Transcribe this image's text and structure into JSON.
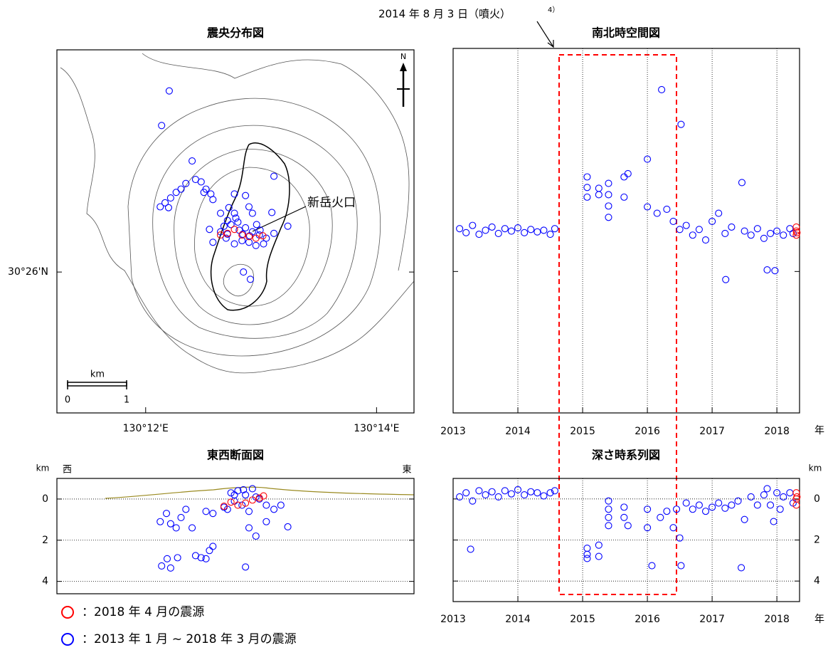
{
  "chart_data": [
    {
      "type": "scatter",
      "title": "震央分布図",
      "crater_label": "新岳火口",
      "north_label": "N",
      "scale_bar": {
        "label": "km",
        "ticks": [
          0,
          1
        ]
      },
      "xlim": [
        130.1872,
        130.2387
      ],
      "ylim": [
        30.4158,
        30.4609
      ],
      "xticks": [
        {
          "value": 130.2,
          "label": "130°12'E"
        },
        {
          "value": 130.2333,
          "label": "130°14'E"
        }
      ],
      "yticks": [
        {
          "value": 30.4333,
          "label": "30°26'N"
        }
      ],
      "grid": "none",
      "series": [
        {
          "name": "：2013 年 1 月 ~ 2018 年 3 月の震源",
          "color": "#0000ff",
          "x": [
            130.2034,
            130.2023,
            130.2067,
            130.2072,
            130.208,
            130.2058,
            130.2051,
            130.2044,
            130.2036,
            130.2028,
            130.2021,
            130.2033,
            130.2087,
            130.2094,
            130.2097,
            130.2084,
            130.2108,
            130.2092,
            130.2097,
            130.2128,
            130.2144,
            130.2149,
            130.2185,
            130.2182,
            130.2154,
            130.2128,
            130.2118,
            130.2113,
            130.2108,
            130.2123,
            130.2133,
            130.2144,
            130.2154,
            130.2164,
            130.2174,
            130.2185,
            130.2139,
            130.2149,
            130.2159,
            130.2128,
            130.2116,
            130.2205,
            130.2141,
            130.2151,
            130.212,
            130.2135,
            130.215,
            130.2165,
            130.2118,
            130.214,
            130.217,
            130.213,
            130.216
          ],
          "values": [
            30.4558,
            30.4515,
            30.4471,
            30.4448,
            30.4445,
            30.4443,
            30.4436,
            30.4432,
            30.4425,
            30.4419,
            30.4414,
            30.4413,
            30.4436,
            30.443,
            30.4423,
            30.4432,
            30.4406,
            30.4386,
            30.437,
            30.443,
            30.4428,
            30.4414,
            30.4452,
            30.4407,
            30.4406,
            30.4406,
            30.4397,
            30.439,
            30.4383,
            30.4392,
            30.4395,
            30.4388,
            30.4383,
            30.4379,
            30.4375,
            30.4381,
            30.4372,
            30.437,
            30.4366,
            30.4368,
            30.4375,
            30.439,
            30.4333,
            30.4324,
            30.4413,
            30.4385,
            30.4378,
            30.4385,
            30.438,
            30.438,
            30.4368,
            30.44,
            30.4392
          ]
        },
        {
          "name": "：2018 年 4 月の震源",
          "color": "#ff0000",
          "x": [
            130.2118,
            130.2128,
            130.2139,
            130.2149,
            130.2159,
            130.2108,
            130.2169
          ],
          "values": [
            30.4381,
            30.4386,
            30.4379,
            30.4377,
            30.4375,
            30.4379,
            30.4378
          ]
        }
      ]
    },
    {
      "type": "scatter",
      "title": "南北時空間図",
      "annotation": "2014 年 8 月 3 日（噴火）",
      "annotation_ref": "4）",
      "xlabel": "年",
      "xlim": [
        2013,
        2018.35
      ],
      "ylim": [
        30.4158,
        30.4609
      ],
      "xticks": [
        2013,
        2014,
        2015,
        2016,
        2017,
        2018
      ],
      "yticks": [
        30.4333
      ],
      "grid": "x",
      "series": [
        {
          "color": "#0000ff",
          "x": [
            2013.1,
            2013.2,
            2013.3,
            2013.4,
            2013.5,
            2013.6,
            2013.7,
            2013.8,
            2013.9,
            2014.0,
            2014.1,
            2014.2,
            2014.3,
            2014.4,
            2014.5,
            2014.57,
            2015.07,
            2015.07,
            2015.07,
            2015.25,
            2015.25,
            2015.4,
            2015.4,
            2015.4,
            2015.4,
            2015.64,
            2015.64,
            2015.7,
            2016.0,
            2016.22,
            2016.52,
            2016.0,
            2016.15,
            2016.3,
            2016.4,
            2016.5,
            2016.6,
            2016.7,
            2016.8,
            2016.9,
            2017.0,
            2017.1,
            2017.2,
            2017.21,
            2017.3,
            2017.46,
            2017.5,
            2017.6,
            2017.7,
            2017.8,
            2017.9,
            2017.85,
            2017.97,
            2018.0,
            2018.1,
            2018.2,
            2018.25
          ],
          "values": [
            30.4386,
            30.4381,
            30.439,
            30.4379,
            30.4384,
            30.4388,
            30.438,
            30.4386,
            30.4383,
            30.4387,
            30.4381,
            30.4385,
            30.4382,
            30.4384,
            30.4379,
            30.4386,
            30.445,
            30.4437,
            30.4425,
            30.4436,
            30.4428,
            30.4442,
            30.4428,
            30.4414,
            30.44,
            30.445,
            30.4425,
            30.4454,
            30.4472,
            30.4558,
            30.4515,
            30.4413,
            30.4405,
            30.441,
            30.4395,
            30.4385,
            30.439,
            30.4378,
            30.4385,
            30.4372,
            30.4395,
            30.4405,
            30.438,
            30.4323,
            30.4388,
            30.4443,
            30.4383,
            30.4378,
            30.4386,
            30.4374,
            30.438,
            30.4335,
            30.4334,
            30.4383,
            30.4378,
            30.4386,
            30.438
          ]
        },
        {
          "color": "#ff0000",
          "x": [
            2018.3,
            2018.3,
            2018.3,
            2018.31
          ],
          "values": [
            30.4383,
            30.4378,
            30.4388,
            30.4381
          ]
        }
      ]
    },
    {
      "type": "scatter",
      "title": "東西断面図",
      "ylabel": "km",
      "west_label": "西",
      "east_label": "東",
      "xlim": [
        130.1872,
        130.2387
      ],
      "ylim": [
        -1,
        4.6
      ],
      "y_inverted": true,
      "yticks": [
        0,
        2,
        4
      ],
      "grid": "y",
      "series": [
        {
          "color": "#0000ff",
          "x": [
            130.2021,
            130.203,
            130.2036,
            130.2044,
            130.2051,
            130.2058,
            130.2067,
            130.2087,
            130.2097,
            130.2023,
            130.2031,
            130.2046,
            130.2036,
            130.2072,
            130.208,
            130.2087,
            130.2092,
            130.2097,
            130.2144,
            130.2159,
            130.2149,
            130.2174,
            130.2205,
            130.2185,
            130.2195,
            130.2113,
            130.2123,
            130.2133,
            130.2144,
            130.2154,
            130.2164,
            130.2174,
            130.2128,
            130.2139,
            130.2149,
            130.2118,
            130.2159,
            130.2141,
            130.2128
          ],
          "values": [
            1.1,
            0.7,
            1.2,
            1.4,
            0.9,
            0.5,
            1.4,
            0.6,
            0.7,
            3.25,
            2.9,
            2.85,
            3.35,
            2.75,
            2.85,
            2.9,
            2.5,
            2.3,
            3.3,
            1.8,
            1.4,
            1.1,
            1.35,
            0.5,
            0.3,
            0.4,
            -0.3,
            -0.4,
            -0.2,
            -0.5,
            0.0,
            0.3,
            0.1,
            0.3,
            0.6,
            0.5,
            -0.1,
            -0.45,
            -0.2
          ]
        },
        {
          "color": "#ff0000",
          "x": [
            130.2113,
            130.2123,
            130.2133,
            130.2144,
            130.2154,
            130.2164,
            130.217
          ],
          "values": [
            0.35,
            0.15,
            0.3,
            0.2,
            0.05,
            -0.05,
            -0.15
          ]
        }
      ]
    },
    {
      "type": "scatter",
      "title": "深さ時系列図",
      "xlabel": "年",
      "ylabel": "km",
      "xlim": [
        2013,
        2018.35
      ],
      "ylim": [
        -1,
        5
      ],
      "y_inverted": true,
      "xticks": [
        2013,
        2014,
        2015,
        2016,
        2017,
        2018
      ],
      "yticks": [
        0,
        2,
        4
      ],
      "grid": "both",
      "series": [
        {
          "color": "#0000ff",
          "x": [
            2013.1,
            2013.2,
            2013.3,
            2013.4,
            2013.5,
            2013.6,
            2013.7,
            2013.8,
            2013.9,
            2014.0,
            2014.1,
            2014.2,
            2014.3,
            2014.4,
            2014.5,
            2014.57,
            2013.27,
            2015.07,
            2015.07,
            2015.07,
            2015.25,
            2015.25,
            2015.4,
            2015.4,
            2015.4,
            2015.4,
            2015.64,
            2015.64,
            2015.7,
            2016.0,
            2016.0,
            2016.07,
            2016.2,
            2016.3,
            2016.4,
            2016.45,
            2016.5,
            2016.52,
            2016.6,
            2016.7,
            2016.8,
            2016.9,
            2017.0,
            2017.1,
            2017.2,
            2017.3,
            2017.4,
            2017.45,
            2017.5,
            2017.6,
            2017.7,
            2017.8,
            2017.85,
            2017.9,
            2017.95,
            2018.0,
            2018.05,
            2018.1,
            2018.2,
            2018.25
          ],
          "values": [
            -0.1,
            -0.3,
            0.1,
            -0.4,
            -0.2,
            -0.35,
            -0.1,
            -0.4,
            -0.25,
            -0.45,
            -0.2,
            -0.35,
            -0.3,
            -0.15,
            -0.3,
            -0.4,
            2.45,
            2.4,
            2.7,
            2.9,
            2.25,
            2.8,
            0.1,
            0.5,
            0.9,
            1.3,
            0.4,
            0.9,
            1.3,
            1.4,
            0.5,
            3.25,
            0.9,
            0.6,
            1.4,
            0.5,
            1.9,
            3.25,
            0.2,
            0.5,
            0.3,
            0.6,
            0.4,
            0.2,
            0.45,
            0.3,
            0.1,
            3.35,
            1.0,
            -0.1,
            0.3,
            -0.2,
            -0.5,
            0.3,
            1.1,
            -0.3,
            0.5,
            -0.1,
            -0.3,
            0.2
          ]
        },
        {
          "color": "#ff0000",
          "x": [
            2018.3,
            2018.3,
            2018.3,
            2018.31
          ],
          "values": [
            -0.3,
            0.0,
            0.3,
            -0.1
          ]
        }
      ]
    }
  ]
}
